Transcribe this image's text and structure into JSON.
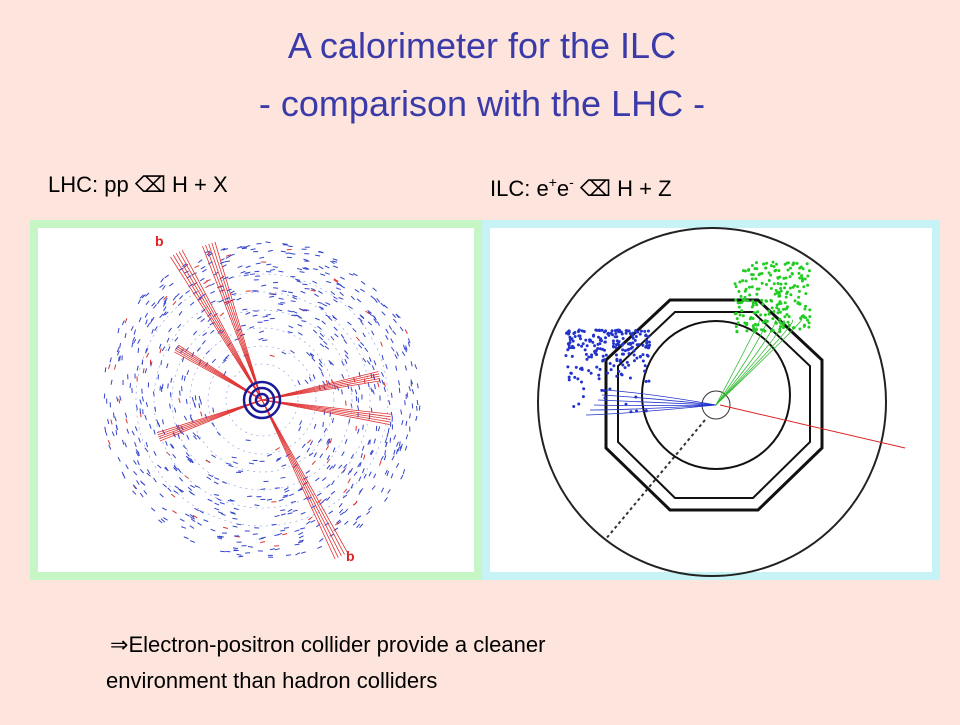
{
  "slide": {
    "title": {
      "line1": "A calorimeter for the ILC",
      "line2": "- comparison with the LHC -"
    },
    "lhc_label": "LHC: pp ⌫ H + X",
    "ilc_label": {
      "parts": [
        "ILC: e",
        "+",
        "e",
        "-",
        " ⌫ H + Z"
      ]
    },
    "lhc_image": {
      "jet_labels": [
        "b",
        "b"
      ]
    },
    "bullet": {
      "symbol": "⇒",
      "lines": [
        "Electron-positron collider provide a cleaner",
        "environment than hadron colliders"
      ]
    }
  }
}
